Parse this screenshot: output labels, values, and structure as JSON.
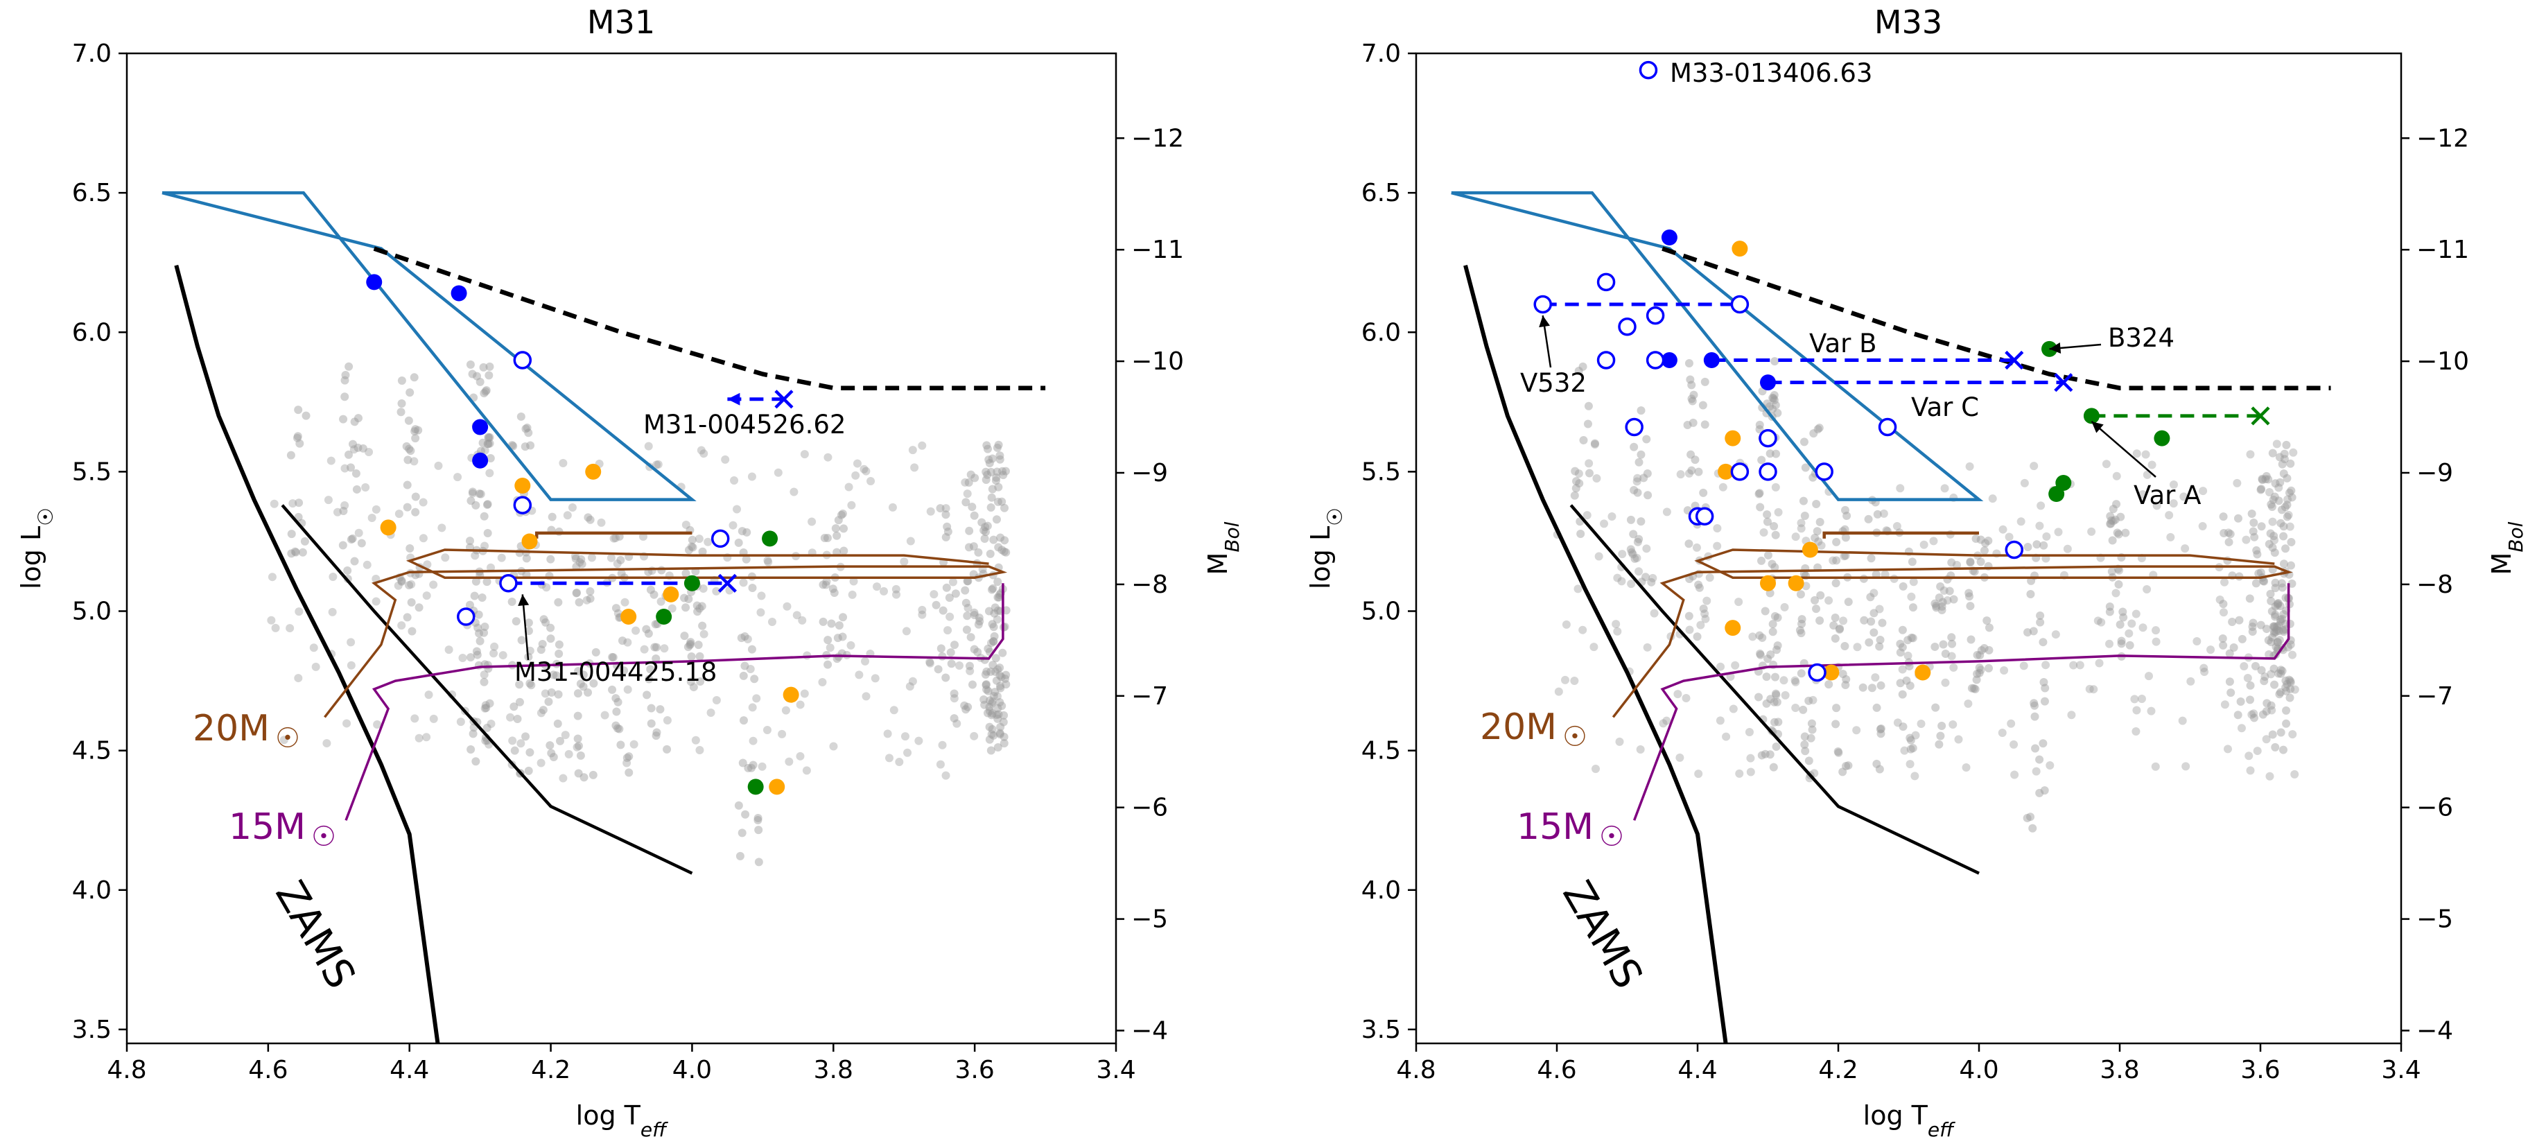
{
  "chart_data": [
    {
      "type": "scatter",
      "title": "M31",
      "xlabel": "log T_eff",
      "ylabel": "log L_sun",
      "y2label": "M_Bol",
      "xlim": [
        4.8,
        3.4
      ],
      "ylim": [
        3.45,
        7.0
      ],
      "xticks": [
        "4.8",
        "4.6",
        "4.4",
        "4.2",
        "4.0",
        "3.8",
        "3.6",
        "3.4"
      ],
      "yticks": [
        "3.5",
        "4.0",
        "4.5",
        "5.0",
        "5.5",
        "6.0",
        "6.5",
        "7.0"
      ],
      "y2ticks": [
        "-4",
        "-5",
        "-6",
        "-7",
        "-8",
        "-9",
        "-10",
        "-11",
        "-12"
      ],
      "zams_label": "ZAMS",
      "track_labels": {
        "m20": "20M",
        "m15": "15M"
      },
      "background_stars": "grey",
      "filled_blue": [
        [
          4.45,
          6.18
        ],
        [
          4.33,
          6.14
        ],
        [
          4.3,
          5.66
        ],
        [
          4.3,
          5.54
        ]
      ],
      "open_blue": [
        [
          4.24,
          5.9
        ],
        [
          4.24,
          5.38
        ],
        [
          4.26,
          5.1
        ],
        [
          4.32,
          4.98
        ],
        [
          3.96,
          5.26
        ]
      ],
      "orange": [
        [
          4.43,
          5.3
        ],
        [
          4.24,
          5.45
        ],
        [
          4.23,
          5.25
        ],
        [
          4.14,
          5.5
        ],
        [
          4.09,
          4.98
        ],
        [
          4.03,
          5.06
        ],
        [
          3.86,
          4.7
        ],
        [
          3.88,
          4.37
        ]
      ],
      "green": [
        [
          4.04,
          4.98
        ],
        [
          4.0,
          5.1
        ],
        [
          3.89,
          5.26
        ],
        [
          3.91,
          4.37
        ]
      ],
      "variability_segments": [
        {
          "from": [
            4.26,
            5.1
          ],
          "to": [
            3.95,
            5.1
          ],
          "start": "open",
          "end": "x"
        },
        {
          "from": [
            3.95,
            5.76
          ],
          "to": [
            3.87,
            5.76
          ],
          "start": "arrow",
          "end": "x"
        }
      ],
      "annotations": [
        {
          "text": "M31-004526.62",
          "xy": [
            3.95,
            5.76
          ]
        },
        {
          "text": "M31-004425.18",
          "xy": [
            4.24,
            5.06
          ]
        }
      ]
    },
    {
      "type": "scatter",
      "title": "M33",
      "xlabel": "log T_eff",
      "ylabel": "log L_sun",
      "y2label": "M_Bol",
      "xlim": [
        4.8,
        3.4
      ],
      "ylim": [
        3.45,
        7.0
      ],
      "xticks": [
        "4.8",
        "4.6",
        "4.4",
        "4.2",
        "4.0",
        "3.8",
        "3.6",
        "3.4"
      ],
      "yticks": [
        "3.5",
        "4.0",
        "4.5",
        "5.0",
        "5.5",
        "6.0",
        "6.5",
        "7.0"
      ],
      "y2ticks": [
        "-4",
        "-5",
        "-6",
        "-7",
        "-8",
        "-9",
        "-10",
        "-11",
        "-12"
      ],
      "zams_label": "ZAMS",
      "track_labels": {
        "m20": "20M",
        "m15": "15M"
      },
      "background_stars": "grey",
      "filled_blue": [
        [
          4.44,
          6.34
        ],
        [
          4.44,
          5.9
        ],
        [
          4.38,
          5.9
        ],
        [
          4.3,
          5.82
        ]
      ],
      "open_blue": [
        [
          4.47,
          6.94
        ],
        [
          4.62,
          6.1
        ],
        [
          4.34,
          6.1
        ],
        [
          4.53,
          6.18
        ],
        [
          4.5,
          6.02
        ],
        [
          4.46,
          6.06
        ],
        [
          4.53,
          5.9
        ],
        [
          4.46,
          5.9
        ],
        [
          4.49,
          5.66
        ],
        [
          4.3,
          5.62
        ],
        [
          4.34,
          5.5
        ],
        [
          4.3,
          5.5
        ],
        [
          4.22,
          5.5
        ],
        [
          4.13,
          5.66
        ],
        [
          4.4,
          5.34
        ],
        [
          4.39,
          5.34
        ],
        [
          3.95,
          5.22
        ],
        [
          4.23,
          4.78
        ]
      ],
      "orange": [
        [
          4.34,
          6.3
        ],
        [
          4.35,
          5.62
        ],
        [
          4.36,
          5.5
        ],
        [
          4.24,
          5.22
        ],
        [
          4.3,
          5.1
        ],
        [
          4.26,
          5.1
        ],
        [
          4.35,
          4.94
        ],
        [
          4.21,
          4.78
        ],
        [
          4.08,
          4.78
        ]
      ],
      "green": [
        [
          3.9,
          5.94
        ],
        [
          3.84,
          5.7
        ],
        [
          3.74,
          5.62
        ],
        [
          3.88,
          5.46
        ],
        [
          3.89,
          5.42
        ]
      ],
      "variability_segments": [
        {
          "from": [
            4.62,
            6.1
          ],
          "to": [
            4.34,
            6.1
          ],
          "start": "open",
          "end": "open"
        },
        {
          "from": [
            4.38,
            5.9
          ],
          "to": [
            3.95,
            5.9
          ],
          "start": "filled",
          "end": "x"
        },
        {
          "from": [
            4.3,
            5.82
          ],
          "to": [
            3.88,
            5.82
          ],
          "start": "filled",
          "end": "x"
        },
        {
          "from": [
            3.84,
            5.7
          ],
          "to": [
            3.6,
            5.7
          ],
          "start": "green",
          "end": "x-green"
        }
      ],
      "annotations": [
        {
          "text": "M33-013406.63",
          "xy": [
            4.47,
            6.94
          ]
        },
        {
          "text": "V532",
          "xy": [
            4.62,
            6.06
          ]
        },
        {
          "text": "Var B",
          "xy": [
            4.15,
            5.9
          ]
        },
        {
          "text": "Var C",
          "xy": [
            4.0,
            5.82
          ]
        },
        {
          "text": "B324",
          "xy": [
            3.9,
            5.94
          ]
        },
        {
          "text": "Var A",
          "xy": [
            3.84,
            5.68
          ]
        }
      ]
    }
  ]
}
